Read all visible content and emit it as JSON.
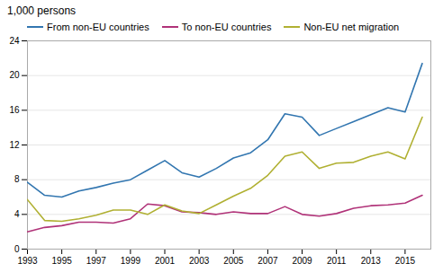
{
  "chart_data": {
    "type": "line",
    "title": "1,000 persons",
    "x": [
      1993,
      1994,
      1995,
      1996,
      1997,
      1998,
      1999,
      2000,
      2001,
      2002,
      2003,
      2004,
      2005,
      2006,
      2007,
      2008,
      2009,
      2010,
      2011,
      2012,
      2013,
      2014,
      2015,
      2016
    ],
    "series": [
      {
        "name": "From non-EU countries",
        "color": "#3276b0",
        "values": [
          7.7,
          6.2,
          6.0,
          6.7,
          7.1,
          7.6,
          8.0,
          9.1,
          10.2,
          8.8,
          8.3,
          9.3,
          10.5,
          11.1,
          12.6,
          15.6,
          15.2,
          13.1,
          13.9,
          14.7,
          15.5,
          16.3,
          15.8,
          21.4
        ]
      },
      {
        "name": "To non-EU countries",
        "color": "#b03278",
        "values": [
          2.0,
          2.5,
          2.7,
          3.1,
          3.1,
          3.0,
          3.5,
          5.2,
          5.0,
          4.3,
          4.2,
          4.0,
          4.3,
          4.1,
          4.1,
          4.9,
          4.0,
          3.8,
          4.1,
          4.7,
          5.0,
          5.1,
          5.3,
          6.2
        ]
      },
      {
        "name": "Non-EU net migration",
        "color": "#b0b032",
        "values": [
          5.7,
          3.3,
          3.2,
          3.5,
          3.9,
          4.5,
          4.5,
          4.0,
          5.1,
          4.4,
          4.1,
          5.1,
          6.1,
          7.0,
          8.5,
          10.7,
          11.2,
          9.3,
          9.9,
          10.0,
          10.7,
          11.2,
          10.4,
          15.2
        ]
      }
    ],
    "xlim": [
      1993,
      2016.5
    ],
    "xticks": [
      1993,
      1995,
      1997,
      1999,
      2001,
      2003,
      2005,
      2007,
      2009,
      2011,
      2013,
      2015
    ],
    "ylim": [
      0,
      24
    ],
    "yticks": [
      0,
      4,
      8,
      12,
      16,
      20,
      24
    ],
    "grid": "y",
    "legend": "upper left"
  }
}
